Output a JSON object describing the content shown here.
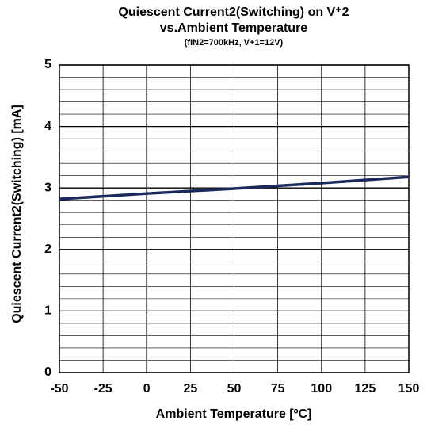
{
  "chart_data": {
    "type": "line",
    "title": "Quiescent Current2(Switching) on V⁺2",
    "subtitle_line": "vs.Ambient Temperature",
    "condition": "(fIN2=700kHz, V+1=12V)",
    "x_label": "Ambient Temperature [ºC]",
    "y_label": "Quiescent Current2(Switching) [mA]",
    "x": [
      -50,
      0,
      50,
      100,
      150
    ],
    "series": [
      {
        "name": "Quiescent Current2",
        "color": "#1b2a5c",
        "values": [
          2.82,
          2.91,
          2.99,
          3.08,
          3.18
        ]
      }
    ],
    "xlim": [
      -50,
      150
    ],
    "xticks": [
      -50,
      -25,
      0,
      25,
      50,
      75,
      100,
      125,
      150
    ],
    "ylim": [
      0,
      5
    ],
    "yticks": [
      0,
      1,
      2,
      3,
      4,
      5
    ],
    "yminorticks": [
      0.2,
      0.4,
      0.6,
      0.8,
      1.2,
      1.4,
      1.6,
      1.8,
      2.2,
      2.4,
      2.6,
      2.8,
      3.2,
      3.4,
      3.6,
      3.8,
      4.2,
      4.4,
      4.6,
      4.8
    ],
    "grid": true
  }
}
